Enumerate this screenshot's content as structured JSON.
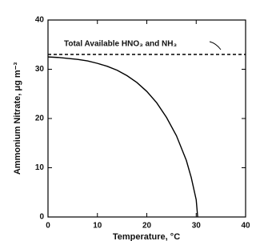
{
  "chart_data": {
    "type": "line",
    "xlabel": "Temperature, °C",
    "ylabel": "Ammonium Nitrate, μg m⁻³",
    "x": [
      0,
      2,
      4,
      6,
      8,
      10,
      12,
      14,
      16,
      18,
      20,
      22,
      24,
      26,
      28,
      29,
      30,
      30.3
    ],
    "series": [
      {
        "color": "#000000",
        "values": [
          32.5,
          32.4,
          32.2,
          32,
          31.7,
          31.2,
          30.6,
          29.8,
          28.7,
          27.3,
          25.5,
          23.2,
          20.2,
          16.5,
          11.5,
          8,
          3.5,
          0
        ]
      }
    ],
    "reference_line": {
      "value": 33,
      "label": "Total Available HNO₃ and NH₃"
    },
    "xlim": [
      0,
      40
    ],
    "xticks": [
      0,
      10,
      20,
      30,
      40
    ],
    "ylim": [
      0,
      40
    ],
    "yticks": [
      0,
      10,
      20,
      30,
      40
    ]
  }
}
